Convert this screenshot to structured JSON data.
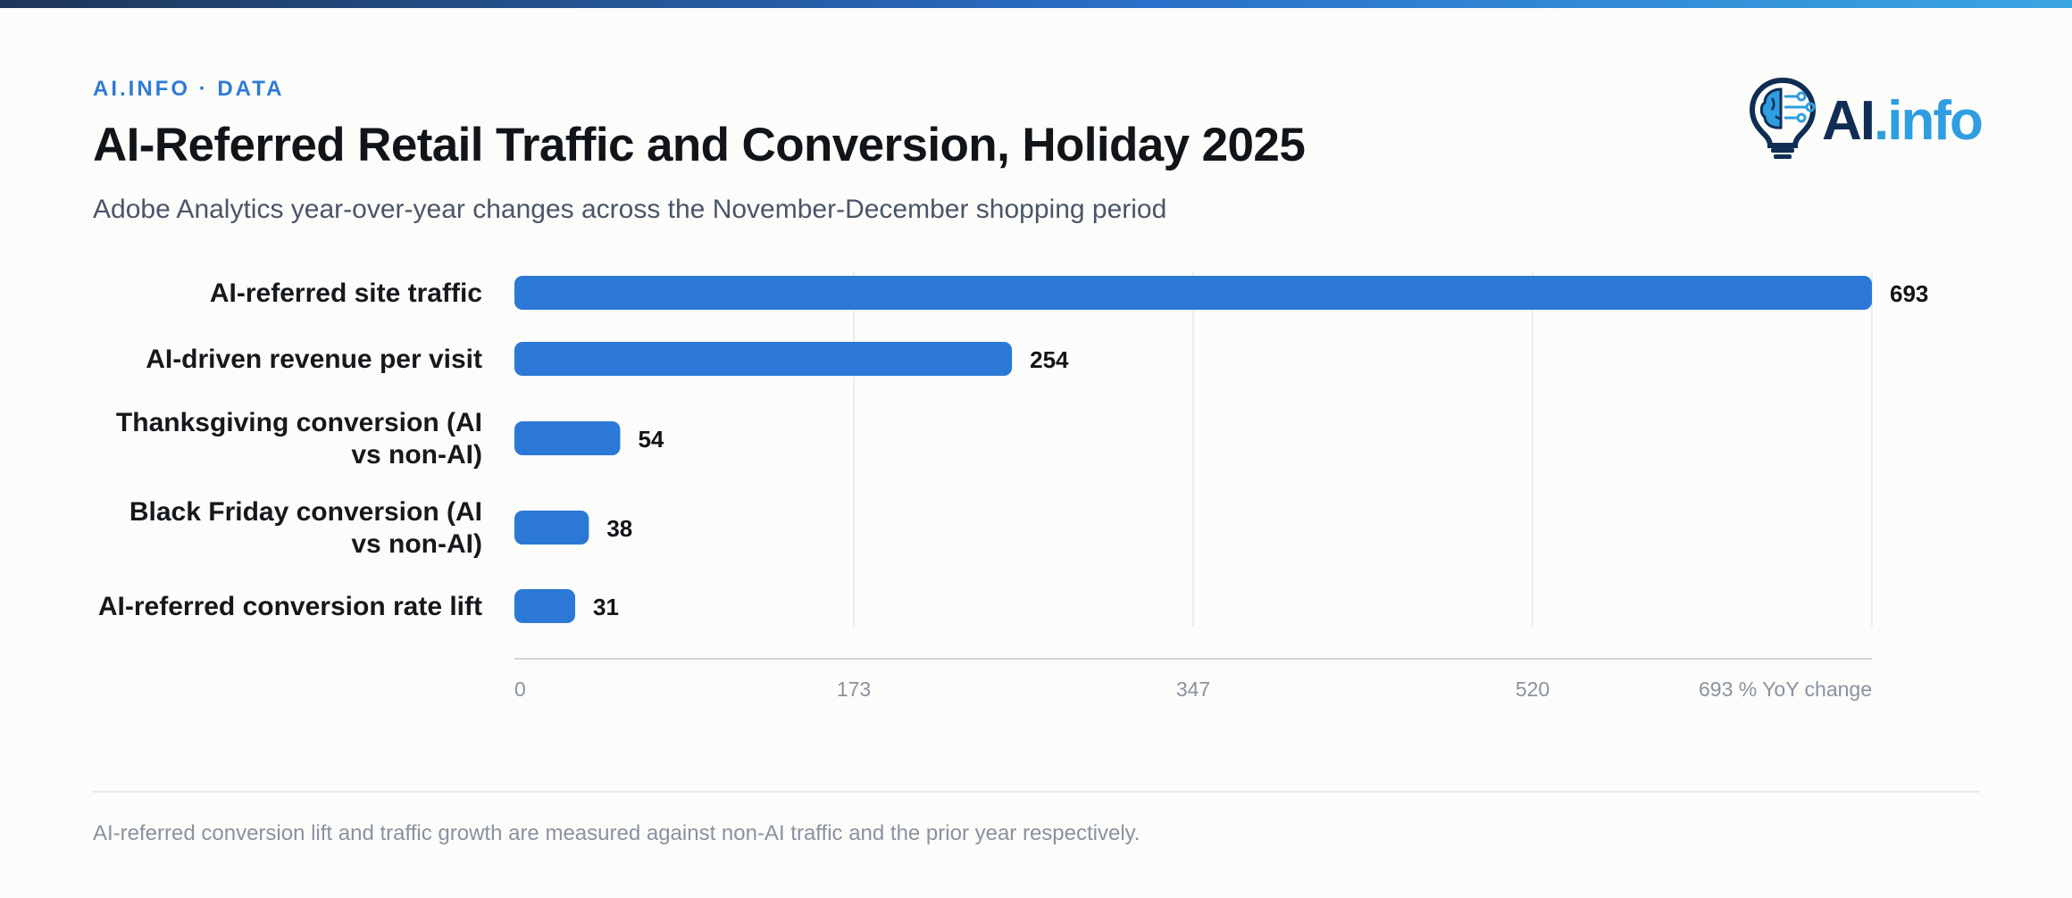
{
  "header": {
    "kicker": "AI.INFO · DATA",
    "title": "AI-Referred Retail Traffic and Conversion, Holiday 2025",
    "subtitle": "Adobe Analytics year-over-year changes across the November-December shopping period"
  },
  "logo": {
    "text_main": "AI",
    "text_accent": ".info",
    "icon": "lightbulb-brain-icon"
  },
  "colors": {
    "bar": "#2b78d6",
    "accent": "#2f7bd6",
    "logo_dark": "#0f2d55",
    "logo_light": "#2f9ee0"
  },
  "chart_data": {
    "type": "bar",
    "orientation": "horizontal",
    "categories": [
      [
        "AI-referred site traffic"
      ],
      [
        "AI-driven revenue per visit"
      ],
      [
        "Thanksgiving conversion (AI",
        "vs non-AI)"
      ],
      [
        "Black Friday conversion (AI",
        "vs non-AI)"
      ],
      [
        "AI-referred conversion rate lift"
      ]
    ],
    "values": [
      693,
      254,
      54,
      38,
      31
    ],
    "xlim": [
      0,
      693
    ],
    "ticks": [
      "0",
      "173",
      "347",
      "520",
      "693"
    ],
    "xlabel": "% YoY change",
    "grid": true
  },
  "footnote": "AI-referred conversion lift and traffic growth are measured against non-AI traffic and the prior year respectively."
}
